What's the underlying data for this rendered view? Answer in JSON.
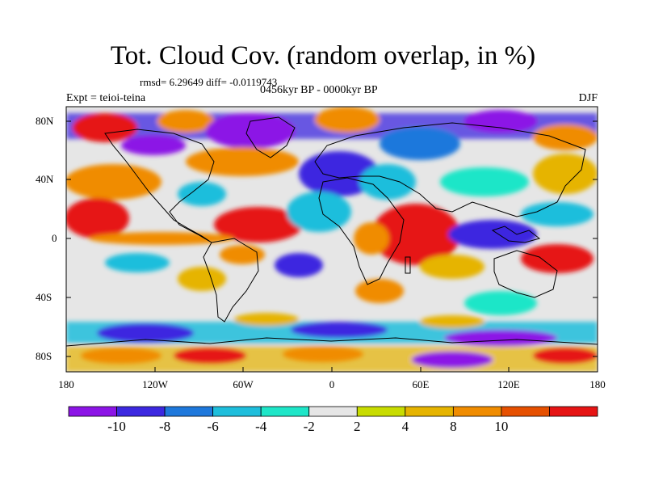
{
  "title": "Tot. Cloud Cov. (random overlap, in %)",
  "stats": "rmsd= 6.29649 diff= -0.0119743",
  "period": "0456kyr BP - 0000kyr BP",
  "experiment": "Expt = teioi-teina",
  "season": "DJF",
  "map": {
    "y_ticks": [
      "80N",
      "40N",
      "0",
      "40S",
      "80S"
    ],
    "x_ticks": [
      "180",
      "120W",
      "60W",
      "0",
      "60E",
      "120E",
      "180"
    ]
  },
  "colorbar": {
    "colors": [
      "#8c14e6",
      "#3c28e0",
      "#1e78dc",
      "#1ebedc",
      "#1ee6c8",
      "#e6e6e6",
      "#c8dc00",
      "#e6b400",
      "#f08c00",
      "#e65000",
      "#e61414"
    ],
    "labels": [
      "-10",
      "-8",
      "-6",
      "-4",
      "-2",
      "2",
      "4",
      "8",
      "10"
    ]
  }
}
